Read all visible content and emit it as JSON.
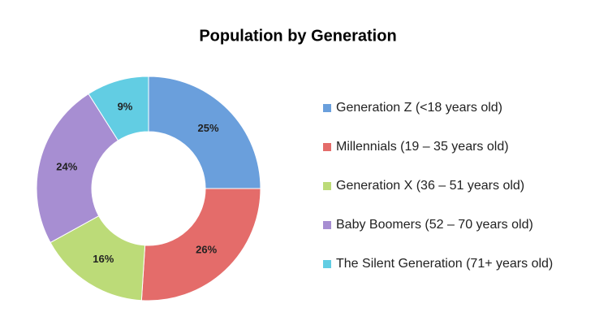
{
  "chart_data": {
    "type": "donut",
    "title": "Population by Generation",
    "categories": [
      "Generation Z (<18 years old)",
      "Millennials (19 – 35 years old)",
      "Generation X (36 – 51 years old)",
      "Baby Boomers (52 – 70 years old)",
      "The Silent Generation (71+ years old)"
    ],
    "values": [
      25,
      26,
      16,
      24,
      9
    ],
    "value_labels": [
      "25%",
      "26%",
      "16%",
      "24%",
      "9%"
    ],
    "colors": [
      "#6a9fdc",
      "#e46c6a",
      "#bcdb78",
      "#a78ed2",
      "#62cde3"
    ],
    "legend": "right"
  }
}
